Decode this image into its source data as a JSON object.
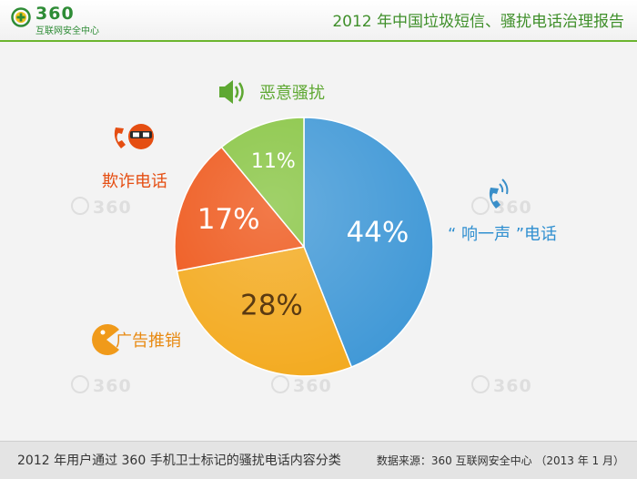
{
  "header": {
    "logo_number": "360",
    "logo_subtitle": "互联网安全中心",
    "report_title": "2012 年中国垃圾短信、骚扰电话治理报告"
  },
  "watermark_text": "360",
  "footer": {
    "caption": "2012 年用户通过 360 手机卫士标记的骚扰电话内容分类",
    "source": "数据来源：360 互联网安全中心 （2013 年 1 月）"
  },
  "colors": {
    "header_accent": "#6cb52f",
    "title_green": "#3f8f2a"
  },
  "chart_data": {
    "type": "pie",
    "start_angle_deg": 0,
    "direction": "clockwise",
    "slices": [
      {
        "label": "“ 响一声 ”电话",
        "value": 44,
        "value_label": "44%",
        "color": "#3e97d6",
        "value_text_color": "#ffffff",
        "icon": "ringing-phone-icon"
      },
      {
        "label": "广告推销",
        "value": 28,
        "value_label": "28%",
        "color": "#f3a91c",
        "value_text_color": "#5a3a12",
        "icon": "pacman-icon"
      },
      {
        "label": "欺诈电话",
        "value": 17,
        "value_label": "17%",
        "color": "#ee5416",
        "value_text_color": "#ffffff",
        "icon": "phone-masked-person-icon"
      },
      {
        "label": "恶意骚扰",
        "value": 11,
        "value_label": "11%",
        "color": "#86c440",
        "value_text_color": "#ffffff",
        "icon": "speaker-icon"
      }
    ]
  }
}
